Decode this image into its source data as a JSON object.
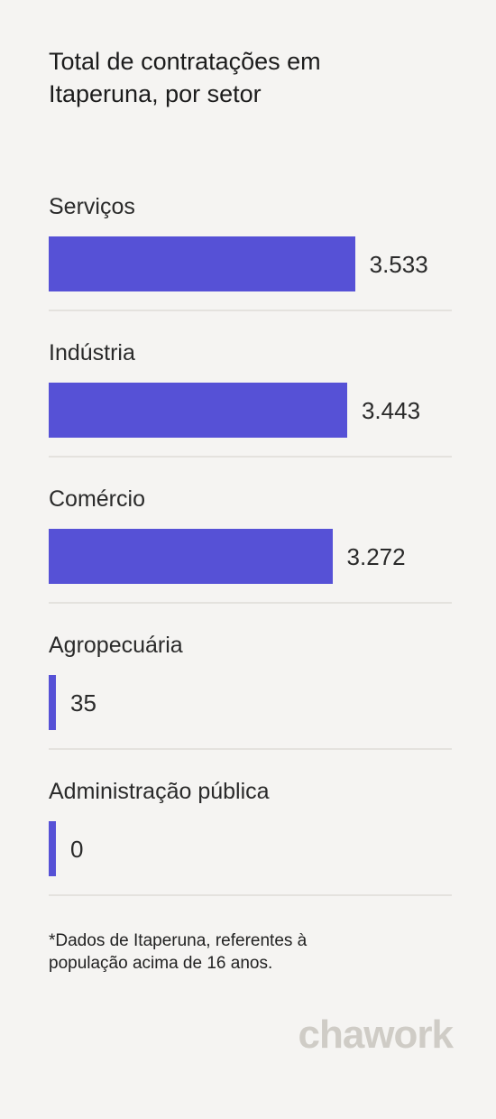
{
  "title": "Total de contratações em Itaperuna, por setor",
  "footnote": "*Dados de Itaperuna, referentes à população acima de 16 anos.",
  "logo": "chawork",
  "colors": {
    "bar": "#5651d6",
    "background": "#f5f4f2",
    "logo": "#cfccc6"
  },
  "chart_data": {
    "type": "bar",
    "orientation": "horizontal",
    "title": "Total de contratações em Itaperuna, por setor",
    "categories": [
      "Serviços",
      "Indústria",
      "Comércio",
      "Agropecuária",
      "Administração pública"
    ],
    "values": [
      3533,
      3443,
      3272,
      35,
      0
    ],
    "value_labels": [
      "3.533",
      "3.443",
      "3.272",
      "35",
      "0"
    ],
    "xlim": [
      0,
      4650
    ],
    "grid": false,
    "legend": "none"
  }
}
